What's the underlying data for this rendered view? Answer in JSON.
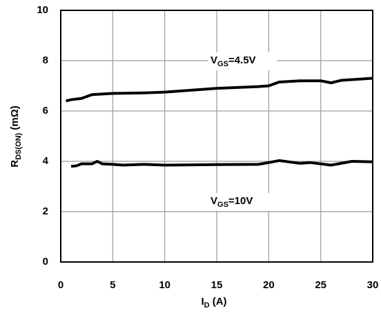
{
  "chart_data": {
    "type": "line",
    "x_label": {
      "main": "I",
      "sub": "D",
      "rest": " (A)"
    },
    "y_label": {
      "main": "R",
      "sub": "DS(ON)",
      "rest": " (mΩ)"
    },
    "annotations": [
      {
        "main": "V",
        "sub": "GS",
        "rest": "=4.5V"
      },
      {
        "main": "V",
        "sub": "GS",
        "rest": "=10V"
      }
    ],
    "series": [
      {
        "color": "#000000",
        "x": [
          0.5,
          1,
          2,
          3,
          5,
          8,
          10,
          15,
          19,
          20,
          21,
          23,
          25,
          26,
          27,
          30
        ],
        "values": [
          6.4,
          6.45,
          6.5,
          6.65,
          6.7,
          6.72,
          6.75,
          6.9,
          6.97,
          7.0,
          7.15,
          7.2,
          7.2,
          7.12,
          7.22,
          7.3
        ]
      },
      {
        "color": "#000000",
        "x": [
          1,
          1.5,
          2,
          3,
          3.5,
          4,
          5,
          6,
          8,
          10,
          15,
          19,
          20,
          21,
          23,
          24,
          26,
          28,
          30
        ],
        "values": [
          3.8,
          3.82,
          3.9,
          3.9,
          4.0,
          3.9,
          3.88,
          3.85,
          3.88,
          3.85,
          3.87,
          3.88,
          3.95,
          4.03,
          3.92,
          3.95,
          3.85,
          4.0,
          3.98
        ]
      }
    ],
    "xlim": [
      0,
      30
    ],
    "xticks": [
      0,
      5,
      10,
      15,
      20,
      25,
      30
    ],
    "ylim": [
      0,
      10
    ],
    "yticks": [
      0,
      2,
      4,
      6,
      8,
      10
    ],
    "grid": true
  }
}
